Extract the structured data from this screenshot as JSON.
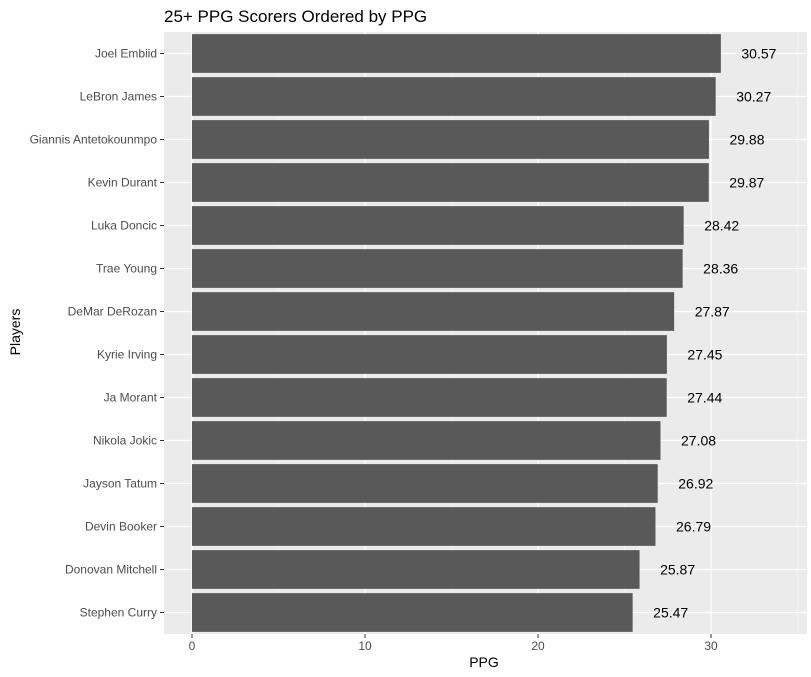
{
  "chart_data": {
    "type": "bar",
    "orientation": "horizontal",
    "title": "25+ PPG Scorers Ordered by PPG",
    "xlabel": "PPG",
    "ylabel": "Players",
    "xlim": [
      0,
      35
    ],
    "x_ticks": [
      0,
      10,
      20,
      30
    ],
    "grid": true,
    "legend": "none",
    "categories": [
      "Joel Embiid",
      "LeBron James",
      "Giannis Antetokounmpo",
      "Kevin Durant",
      "Luka Doncic",
      "Trae Young",
      "DeMar DeRozan",
      "Kyrie Irving",
      "Ja Morant",
      "Nikola Jokic",
      "Jayson Tatum",
      "Devin Booker",
      "Donovan Mitchell",
      "Stephen Curry"
    ],
    "values": [
      30.57,
      30.27,
      29.88,
      29.87,
      28.42,
      28.36,
      27.87,
      27.45,
      27.44,
      27.08,
      26.92,
      26.79,
      25.87,
      25.47
    ],
    "data_labels": [
      "30.57",
      "30.27",
      "29.88",
      "29.87",
      "28.42",
      "28.36",
      "27.87",
      "27.45",
      "27.44",
      "27.08",
      "26.92",
      "26.79",
      "25.87",
      "25.47"
    ],
    "colors": {
      "bar": "#595959",
      "panel_background": "#ebebeb",
      "grid_major": "#ffffff",
      "grid_minor": "#f5f5f5",
      "tick_text": "#4d4d4d",
      "tick_mark": "#333333",
      "text": "#000000"
    }
  }
}
